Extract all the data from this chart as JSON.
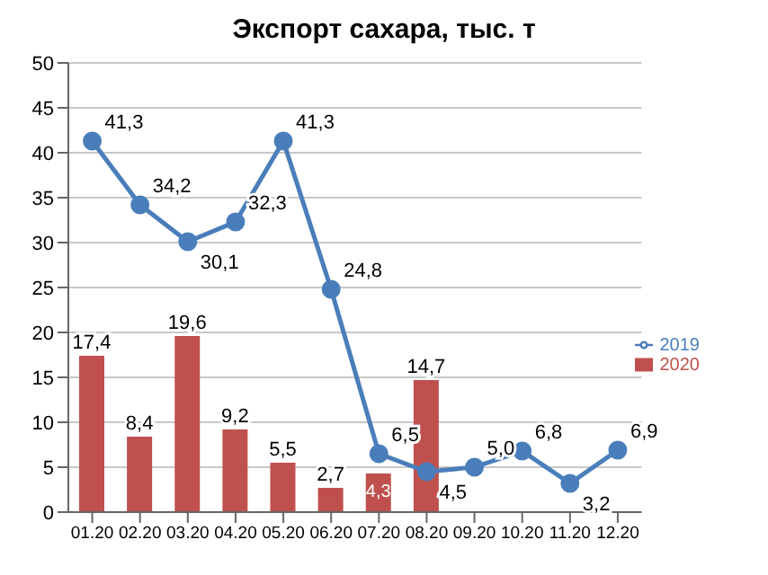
{
  "chart_data": {
    "type": "bar",
    "title": "Экспорт сахара, тыс. т",
    "categories": [
      "01.20",
      "02.20",
      "03.20",
      "04.20",
      "05.20",
      "06.20",
      "07.20",
      "08.20",
      "09.20",
      "10.20",
      "11.20",
      "12.20"
    ],
    "series": [
      {
        "name": "2020",
        "color": "#c0504d",
        "values": [
          17.4,
          8.4,
          19.6,
          9.2,
          5.5,
          2.7,
          4.3,
          14.7,
          null,
          null,
          null,
          null
        ],
        "value_labels": [
          "17,4",
          "8,4",
          "19,6",
          "9,2",
          "5,5",
          "2,7",
          "4,3",
          "14,7",
          null,
          null,
          null,
          null
        ]
      },
      {
        "name": "2019",
        "type": "line",
        "color": "#4a7ebb",
        "marker": "circle",
        "values": [
          41.3,
          34.2,
          30.1,
          32.3,
          41.3,
          24.8,
          6.5,
          4.5,
          5.0,
          6.8,
          3.2,
          6.9
        ],
        "value_labels": [
          "41,3",
          "34,2",
          "30,1",
          "32,3",
          "41,3",
          "24,8",
          "6,5",
          "4,5",
          "5,0",
          "6,8",
          "3,2",
          "6,9"
        ]
      }
    ],
    "ylim": [
      0,
      50
    ],
    "yticks": [
      0,
      5,
      10,
      15,
      20,
      25,
      30,
      35,
      40,
      45,
      50
    ],
    "grid": "y",
    "legend": "right"
  }
}
